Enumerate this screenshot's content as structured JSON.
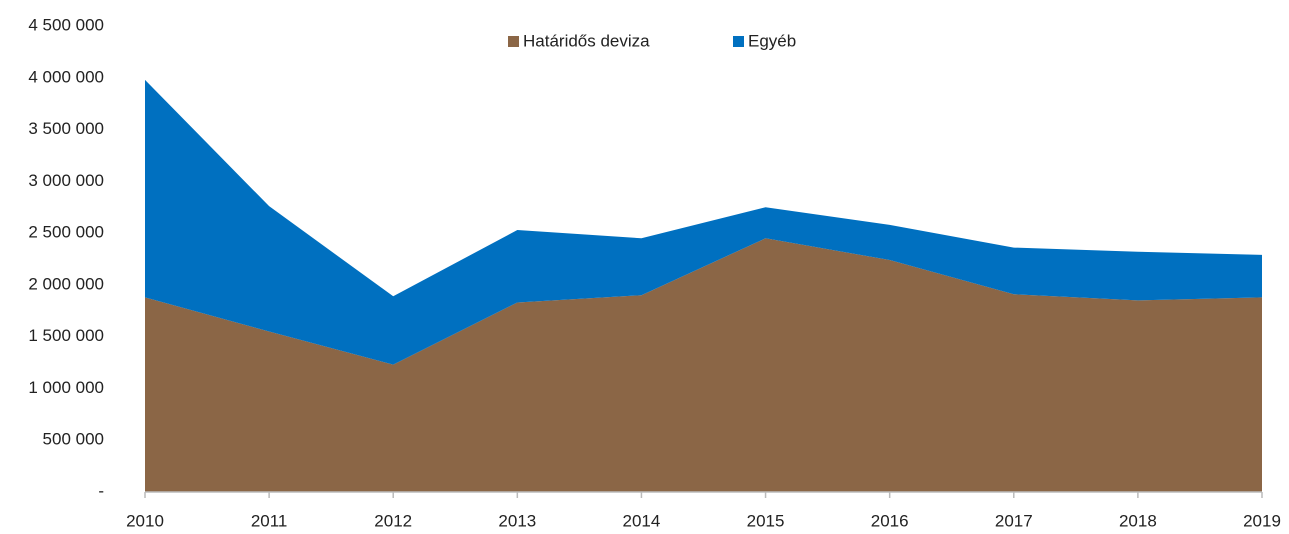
{
  "chart_data": {
    "type": "stacked_area",
    "categories": [
      "2010",
      "2011",
      "2012",
      "2013",
      "2014",
      "2015",
      "2016",
      "2017",
      "2018",
      "2019"
    ],
    "series": [
      {
        "name": "Határidős deviza",
        "color": "#8b6646",
        "values": [
          1880000,
          1550000,
          1230000,
          1830000,
          1900000,
          2450000,
          2240000,
          1910000,
          1850000,
          1880000
        ]
      },
      {
        "name": "Egyéb",
        "color": "#0070c0",
        "values": [
          2100000,
          1210000,
          660000,
          700000,
          550000,
          300000,
          340000,
          450000,
          470000,
          410000
        ]
      }
    ],
    "ylim": [
      0,
      4500000
    ],
    "yticks": [
      {
        "value": 0,
        "label": "-"
      },
      {
        "value": 500000,
        "label": "500 000"
      },
      {
        "value": 1000000,
        "label": "1 000 000"
      },
      {
        "value": 1500000,
        "label": "1 500 000"
      },
      {
        "value": 2000000,
        "label": "2 000 000"
      },
      {
        "value": 2500000,
        "label": "2 500 000"
      },
      {
        "value": 3000000,
        "label": "3 000 000"
      },
      {
        "value": 3500000,
        "label": "3 500 000"
      },
      {
        "value": 4000000,
        "label": "4 000 000"
      },
      {
        "value": 4500000,
        "label": "4 500 000"
      }
    ],
    "legend": "top",
    "grid": false
  }
}
